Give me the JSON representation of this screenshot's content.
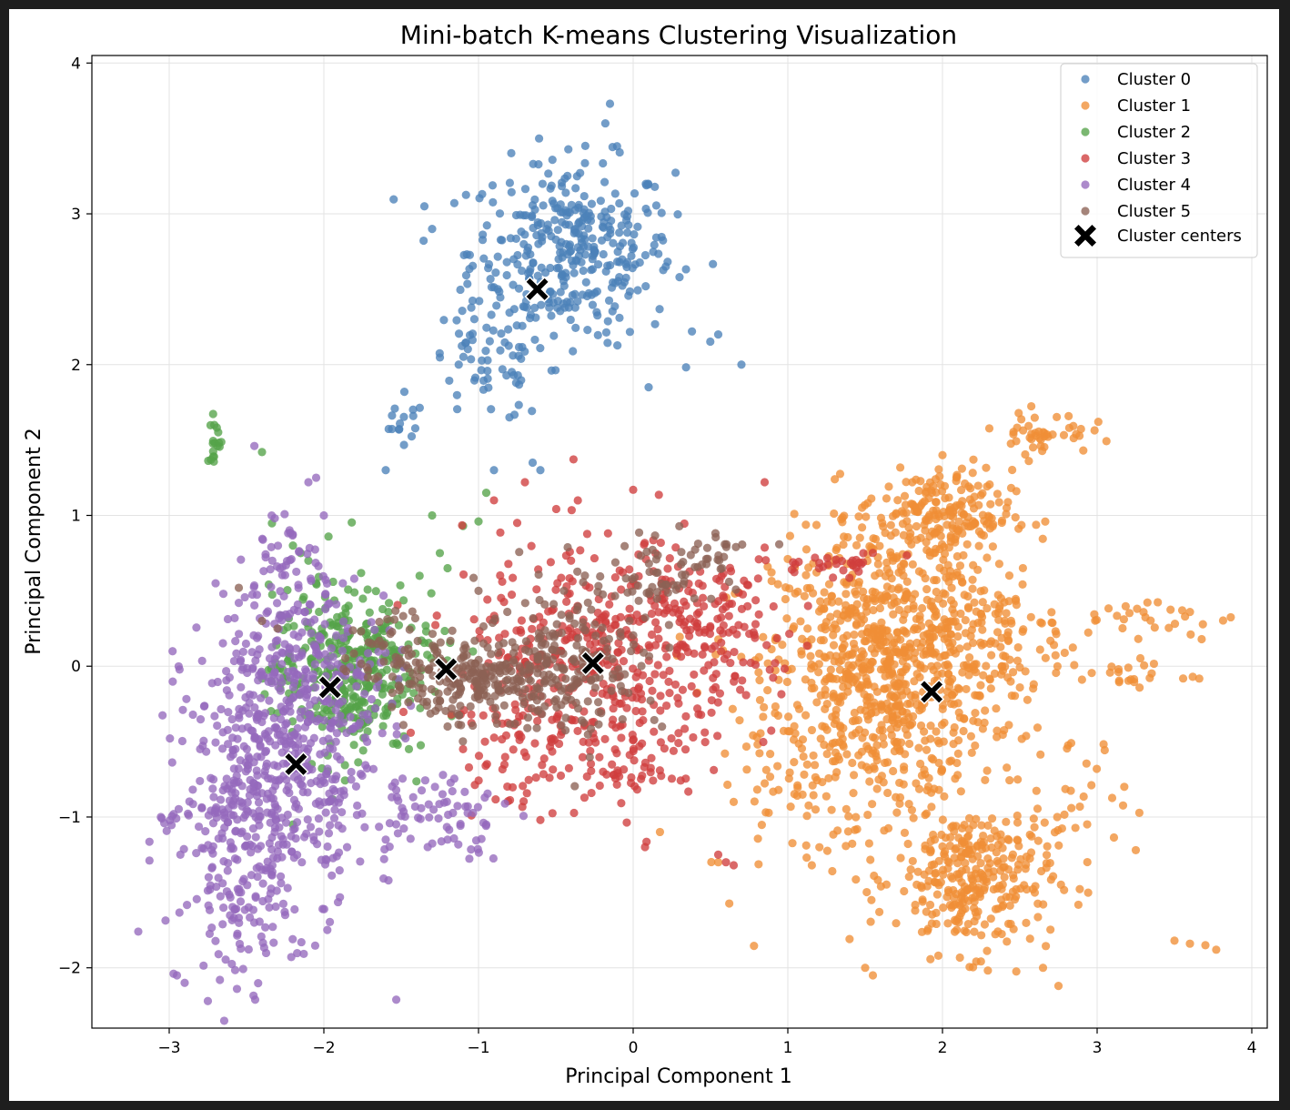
{
  "chart_data": {
    "type": "scatter",
    "title": "Mini-batch K-means Clustering Visualization",
    "xlabel": "Principal Component 1",
    "ylabel": "Principal Component 2",
    "xlim": [
      -3.5,
      4.1
    ],
    "ylim": [
      -2.4,
      4.05
    ],
    "xticks": [
      -3,
      -2,
      -1,
      0,
      1,
      2,
      3,
      4
    ],
    "xtick_labels": [
      "−3",
      "−2",
      "−1",
      "0",
      "1",
      "2",
      "3",
      "4"
    ],
    "yticks": [
      -2,
      -1,
      0,
      1,
      2,
      3,
      4
    ],
    "ytick_labels": [
      "−2",
      "−1",
      "0",
      "1",
      "2",
      "3",
      "4"
    ],
    "grid": true,
    "legend_position": "top-right",
    "series": [
      {
        "name": "Cluster 0",
        "color": "#4c81b8",
        "clusters": [
          {
            "center": [
              -0.4,
              2.75
            ],
            "spread": [
              0.33,
              0.3
            ],
            "n": 360
          },
          {
            "center": [
              -0.95,
              2.0
            ],
            "spread": [
              0.2,
              0.2
            ],
            "n": 60
          },
          {
            "center": [
              -1.5,
              1.6
            ],
            "spread": [
              0.08,
              0.08
            ],
            "n": 14
          }
        ],
        "points": [
          [
            -0.15,
            3.73
          ],
          [
            -0.18,
            3.6
          ],
          [
            0.38,
            2.22
          ],
          [
            0.55,
            2.2
          ],
          [
            0.7,
            2.0
          ],
          [
            -0.65,
            1.35
          ],
          [
            -0.9,
            1.3
          ],
          [
            -0.8,
            1.65
          ],
          [
            -0.6,
            1.3
          ],
          [
            -1.6,
            1.3
          ],
          [
            0.1,
            1.85
          ],
          [
            -1.35,
            3.05
          ],
          [
            -1.3,
            2.9
          ]
        ]
      },
      {
        "name": "Cluster 1",
        "color": "#ef8e36",
        "clusters": [
          {
            "center": [
              1.6,
              0.0
            ],
            "spread": [
              0.35,
              0.45
            ],
            "n": 700
          },
          {
            "center": [
              2.2,
              -1.4
            ],
            "spread": [
              0.25,
              0.25
            ],
            "n": 320
          },
          {
            "center": [
              1.95,
              1.0
            ],
            "spread": [
              0.25,
              0.15
            ],
            "n": 200
          },
          {
            "center": [
              2.2,
              0.2
            ],
            "spread": [
              0.3,
              0.35
            ],
            "n": 200
          },
          {
            "center": [
              2.65,
              1.55
            ],
            "spread": [
              0.15,
              0.07
            ],
            "n": 45
          },
          {
            "center": [
              1.15,
              -0.5
            ],
            "spread": [
              0.35,
              0.45
            ],
            "n": 120
          },
          {
            "center": [
              3.3,
              0.3
            ],
            "spread": [
              0.3,
              0.08
            ],
            "n": 30
          },
          {
            "center": [
              3.15,
              -0.05
            ],
            "spread": [
              0.25,
              0.05
            ],
            "n": 25
          },
          {
            "center": [
              2.9,
              -0.85
            ],
            "spread": [
              0.15,
              0.2
            ],
            "n": 25
          }
        ],
        "points": [
          [
            3.5,
            -1.82
          ],
          [
            3.6,
            -1.84
          ],
          [
            3.7,
            -1.85
          ],
          [
            3.77,
            -1.88
          ],
          [
            1.55,
            -2.05
          ],
          [
            1.5,
            -2.0
          ],
          [
            2.75,
            -2.12
          ],
          [
            2.65,
            -2.0
          ],
          [
            2.0,
            1.4
          ],
          [
            2.2,
            1.37
          ],
          [
            3.55,
            0.37
          ],
          [
            3.6,
            0.36
          ],
          [
            3.25,
            -1.22
          ],
          [
            0.65,
            -0.9
          ],
          [
            0.55,
            -1.3
          ]
        ]
      },
      {
        "name": "Cluster 2",
        "color": "#55a349",
        "clusters": [
          {
            "center": [
              -1.9,
              -0.05
            ],
            "spread": [
              0.22,
              0.28
            ],
            "n": 320
          },
          {
            "center": [
              -1.5,
              0.15
            ],
            "spread": [
              0.18,
              0.2
            ],
            "n": 60
          },
          {
            "center": [
              -2.7,
              1.5
            ],
            "spread": [
              0.03,
              0.08
            ],
            "n": 18
          }
        ],
        "points": [
          [
            -2.4,
            1.42
          ],
          [
            -2.2,
            0.8
          ],
          [
            -2.15,
            0.75
          ],
          [
            -2.1,
            0.7
          ],
          [
            -1.97,
            0.86
          ],
          [
            -1.3,
            1.0
          ],
          [
            -1.0,
            0.96
          ],
          [
            -1.1,
            0.93
          ],
          [
            -1.2,
            0.65
          ],
          [
            -0.95,
            1.15
          ],
          [
            -1.25,
            0.75
          ],
          [
            -2.05,
            0.55
          ],
          [
            -2.2,
            -1.05
          ],
          [
            -1.45,
            -0.55
          ]
        ]
      },
      {
        "name": "Cluster 3",
        "color": "#cf3e3d",
        "clusters": [
          {
            "center": [
              -0.2,
              0.05
            ],
            "spread": [
              0.45,
              0.4
            ],
            "n": 380
          },
          {
            "center": [
              0.45,
              0.3
            ],
            "spread": [
              0.3,
              0.25
            ],
            "n": 120
          },
          {
            "center": [
              -0.6,
              -0.4
            ],
            "spread": [
              0.3,
              0.25
            ],
            "n": 80
          },
          {
            "center": [
              0.0,
              -0.7
            ],
            "spread": [
              0.15,
              0.1
            ],
            "n": 40
          },
          {
            "center": [
              1.3,
              0.68
            ],
            "spread": [
              0.2,
              0.04
            ],
            "n": 30
          }
        ],
        "points": [
          [
            -0.7,
            1.22
          ],
          [
            0.0,
            1.17
          ],
          [
            0.85,
            1.22
          ],
          [
            -0.9,
            1.1
          ],
          [
            0.6,
            -1.3
          ],
          [
            0.65,
            -1.32
          ],
          [
            -0.6,
            -1.02
          ],
          [
            -0.75,
            0.95
          ],
          [
            0.55,
            -1.25
          ],
          [
            -1.1,
            -0.55
          ]
        ]
      },
      {
        "name": "Cluster 4",
        "color": "#9569bc",
        "clusters": [
          {
            "center": [
              -2.3,
              -0.7
            ],
            "spread": [
              0.3,
              0.5
            ],
            "n": 520
          },
          {
            "center": [
              -2.55,
              -1.4
            ],
            "spread": [
              0.15,
              0.35
            ],
            "n": 120
          },
          {
            "center": [
              -2.0,
              0.0
            ],
            "spread": [
              0.25,
              0.3
            ],
            "n": 140
          },
          {
            "center": [
              -1.3,
              -0.95
            ],
            "spread": [
              0.25,
              0.15
            ],
            "n": 70
          },
          {
            "center": [
              -2.3,
              0.55
            ],
            "spread": [
              0.12,
              0.3
            ],
            "n": 60
          },
          {
            "center": [
              -3.0,
              -1.0
            ],
            "spread": [
              0.05,
              0.05
            ],
            "n": 10
          }
        ],
        "points": [
          [
            -3.2,
            -1.76
          ],
          [
            -2.9,
            -2.1
          ],
          [
            -2.95,
            -2.05
          ],
          [
            -2.0,
            1.0
          ],
          [
            -2.1,
            1.22
          ],
          [
            -2.05,
            1.25
          ],
          [
            -2.65,
            0.48
          ],
          [
            -2.55,
            0.42
          ],
          [
            -2.7,
            0.55
          ],
          [
            -2.8,
            -0.55
          ],
          [
            -2.25,
            -1.65
          ],
          [
            -1.85,
            -1.2
          ],
          [
            -1.6,
            -1.15
          ],
          [
            -1.2,
            -1.15
          ],
          [
            -0.95,
            -1.05
          ],
          [
            -2.45,
            -1.7
          ]
        ]
      },
      {
        "name": "Cluster 5",
        "color": "#8c6254",
        "clusters": [
          {
            "center": [
              -1.0,
              -0.1
            ],
            "spread": [
              0.3,
              0.12
            ],
            "n": 220
          },
          {
            "center": [
              -0.4,
              0.05
            ],
            "spread": [
              0.3,
              0.25
            ],
            "n": 160
          },
          {
            "center": [
              0.2,
              0.6
            ],
            "spread": [
              0.3,
              0.12
            ],
            "n": 60
          },
          {
            "center": [
              -1.55,
              0.05
            ],
            "spread": [
              0.2,
              0.2
            ],
            "n": 50
          },
          {
            "center": [
              0.55,
              0.75
            ],
            "spread": [
              0.1,
              0.05
            ],
            "n": 20
          }
        ],
        "points": [
          [
            -2.55,
            0.52
          ],
          [
            -2.4,
            0.3
          ],
          [
            -2.3,
            0.25
          ],
          [
            -1.0,
            0.5
          ],
          [
            -1.2,
            -0.4
          ]
        ]
      }
    ],
    "centers": {
      "name": "Cluster centers",
      "color": "#000000",
      "points": [
        [
          -0.62,
          2.5
        ],
        [
          1.93,
          -0.17
        ],
        [
          -1.96,
          -0.14
        ],
        [
          -0.26,
          0.02
        ],
        [
          -2.18,
          -0.65
        ],
        [
          -1.21,
          -0.02
        ]
      ]
    }
  }
}
